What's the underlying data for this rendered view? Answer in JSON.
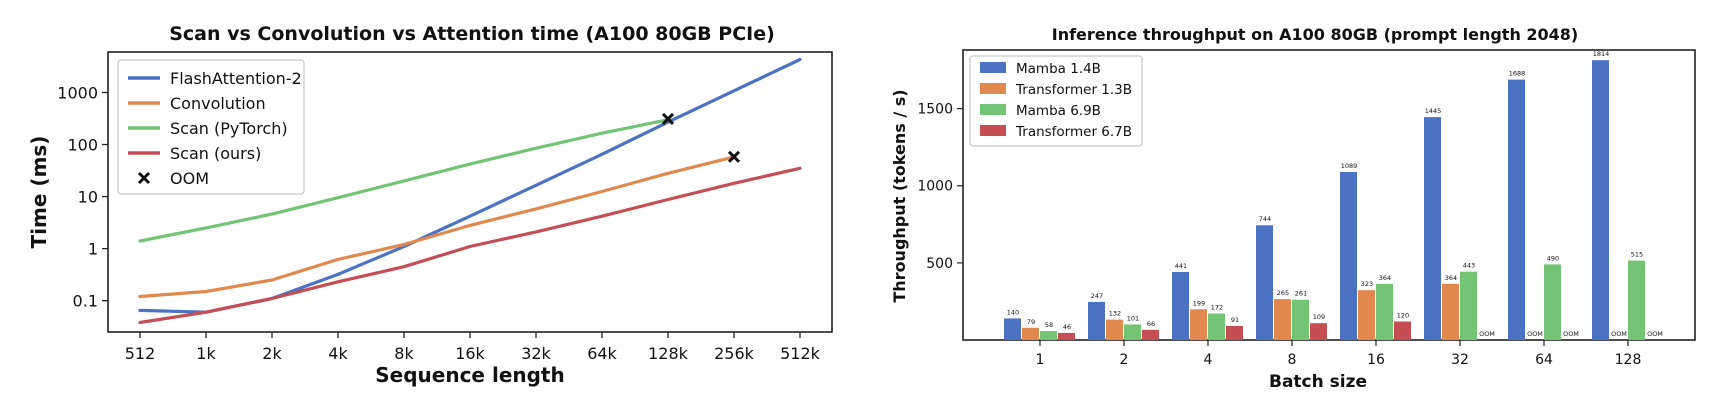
{
  "chart_data": [
    {
      "type": "line",
      "title": "Scan vs Convolution vs Attention time (A100 80GB PCIe)",
      "xlabel": "Sequence length",
      "ylabel": "Time (ms)",
      "yscale": "log",
      "ylim": [
        0.025,
        6000
      ],
      "categories": [
        "512",
        "1k",
        "2k",
        "4k",
        "8k",
        "16k",
        "32k",
        "64k",
        "128k",
        "256k",
        "512k"
      ],
      "yticks": [
        {
          "value": 0.1,
          "label": "0.1"
        },
        {
          "value": 1,
          "label": "1"
        },
        {
          "value": 10,
          "label": "10"
        },
        {
          "value": 100,
          "label": "100"
        },
        {
          "value": 1000,
          "label": "1000"
        }
      ],
      "series": [
        {
          "name": "FlashAttention-2",
          "color": "#4c72c4",
          "values": [
            0.065,
            0.06,
            0.11,
            0.32,
            1.1,
            4.2,
            16.5,
            65,
            270,
            1080,
            4300
          ]
        },
        {
          "name": "Convolution",
          "color": "#e1884f",
          "values": [
            0.12,
            0.15,
            0.25,
            0.62,
            1.2,
            2.8,
            5.8,
            12.5,
            28,
            58,
            null
          ]
        },
        {
          "name": "Scan (PyTorch)",
          "color": "#74c476",
          "values": [
            1.4,
            2.5,
            4.6,
            9.5,
            20,
            42,
            85,
            165,
            300,
            null,
            null
          ]
        },
        {
          "name": "Scan (ours)",
          "color": "#c44e52",
          "values": [
            0.038,
            0.06,
            0.11,
            0.23,
            0.45,
            1.1,
            2.1,
            4.2,
            8.8,
            18,
            35
          ]
        }
      ],
      "oom": {
        "label": "OOM",
        "points": [
          {
            "category": "128k",
            "value": 310
          },
          {
            "category": "256k",
            "value": 58
          }
        ]
      },
      "legend_position": "top-left"
    },
    {
      "type": "bar",
      "title": "Inference throughput on A100 80GB (prompt length 2048)",
      "xlabel": "Batch size",
      "ylabel": "Throughput (tokens / s)",
      "ylim": [
        0,
        1880
      ],
      "yticks": [
        500,
        1000,
        1500
      ],
      "categories": [
        "1",
        "2",
        "4",
        "8",
        "16",
        "32",
        "64",
        "128"
      ],
      "oom_label": "OOM",
      "series": [
        {
          "name": "Mamba 1.4B",
          "color": "#4c72c4",
          "values": [
            140,
            247,
            441,
            744,
            1089,
            1445,
            1688,
            1814
          ]
        },
        {
          "name": "Transformer 1.3B",
          "color": "#e1884f",
          "values": [
            79,
            132,
            199,
            265,
            323,
            364,
            null,
            null
          ]
        },
        {
          "name": "Mamba 6.9B",
          "color": "#74c476",
          "values": [
            58,
            101,
            172,
            261,
            364,
            443,
            490,
            515
          ]
        },
        {
          "name": "Transformer 6.7B",
          "color": "#c44e52",
          "values": [
            46,
            66,
            91,
            109,
            120,
            null,
            null,
            null
          ]
        }
      ],
      "legend_position": "top-left"
    }
  ]
}
